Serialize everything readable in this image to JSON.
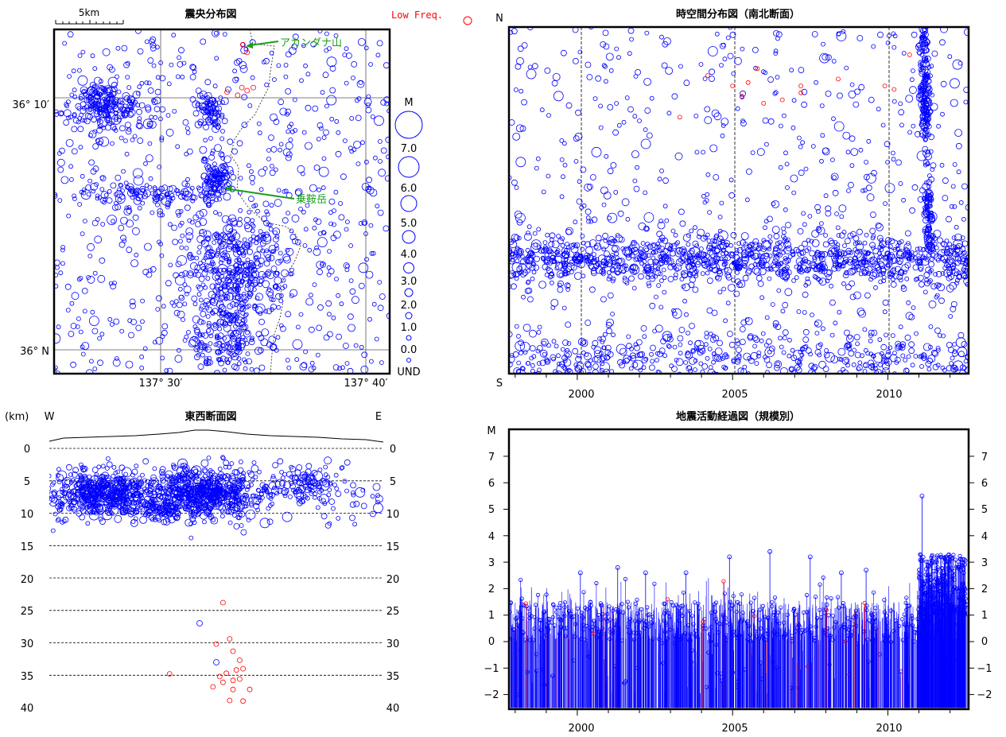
{
  "colors": {
    "normal": "#0000ff",
    "low_freq": "#ff0000",
    "label": "#1a9e1a",
    "frame": "#000000"
  },
  "legend_low_freq": "Low Freq.",
  "charts": {
    "map": {
      "title": "震央分布図",
      "scale_label": "5km",
      "lat_labels": [
        "36° 10′",
        "36° N"
      ],
      "lon_labels": [
        "137° 30′",
        "137° 40′"
      ],
      "volcano_labels": [
        "アカンダナ山",
        "乗鞍岳"
      ]
    },
    "magnitude_legend": {
      "header": "M",
      "labels": [
        "7.0",
        "6.0",
        "5.0",
        "4.0",
        "3.0",
        "2.0",
        "1.0",
        "0.0",
        "UND"
      ]
    },
    "spacetime": {
      "title": "時空間分布図（南北断面）",
      "top_label": "N",
      "bottom_label": "S",
      "years": [
        "2000",
        "2005",
        "2010"
      ]
    },
    "cross_section": {
      "title": "東西断面図",
      "unit_label": "(km)",
      "west_label": "W",
      "east_label": "E",
      "depths": [
        "0",
        "5",
        "10",
        "15",
        "20",
        "25",
        "30",
        "35",
        "40"
      ]
    },
    "activity": {
      "title": "地震活動経過図（規模別）",
      "axis_label": "M",
      "ticks": [
        "7",
        "6",
        "5",
        "4",
        "3",
        "2",
        "1",
        "0",
        "−1",
        "−2"
      ],
      "years": [
        "2000",
        "2005",
        "2010"
      ]
    }
  },
  "chart_data": [
    {
      "type": "scatter",
      "title": "震央分布図",
      "xlim": [
        137.39,
        137.71
      ],
      "ylim": [
        35.99,
        36.215
      ],
      "clusters": [
        {
          "lon": 137.438,
          "lat": 36.165,
          "spread": [
            0.02,
            0.008
          ],
          "count": 220
        },
        {
          "lon": 137.538,
          "lat": 36.162,
          "spread": [
            0.007,
            0.006
          ],
          "count": 70
        },
        {
          "lon": 137.545,
          "lat": 36.118,
          "spread": [
            0.007,
            0.007
          ],
          "count": 100
        },
        {
          "lon": 137.48,
          "lat": 36.107,
          "spread": [
            0.035,
            0.004
          ],
          "count": 120
        },
        {
          "lon": 137.565,
          "lat": 36.06,
          "spread": [
            0.025,
            0.018
          ],
          "count": 380
        },
        {
          "lon": 137.555,
          "lat": 36.015,
          "spread": [
            0.018,
            0.014
          ],
          "count": 180
        },
        {
          "lon": 137.74,
          "lat": 36.19,
          "spread": [
            0.004,
            0.003
          ],
          "count": 20
        }
      ],
      "background_count": 650,
      "low_freq_events": [
        {
          "lon": 137.57,
          "lat": 36.205
        },
        {
          "lon": 137.574,
          "lat": 36.2
        },
        {
          "lon": 137.569,
          "lat": 36.177
        },
        {
          "lon": 137.574,
          "lat": 36.175
        },
        {
          "lon": 137.555,
          "lat": 36.174
        },
        {
          "lon": 137.58,
          "lat": 36.177
        },
        {
          "lon": 137.565,
          "lat": 36.172
        }
      ]
    },
    {
      "type": "scatter",
      "title": "時空間分布図（南北断面）",
      "xlim": [
        1997.8,
        2012.6
      ],
      "ylim": [
        0,
        1
      ],
      "streaks": [
        {
          "y": 0.33,
          "spread": 0.035,
          "count": 1050
        },
        {
          "y": 0.04,
          "spread": 0.04,
          "count": 420
        }
      ],
      "swarms": [
        {
          "t": 2011.2,
          "y": 0.78,
          "spread": [
            0.08,
            0.08
          ],
          "count": 150
        },
        {
          "t": 2011.3,
          "y": 0.45,
          "spread": [
            0.07,
            0.05
          ],
          "count": 80
        },
        {
          "t": 2011.15,
          "y": 0.95,
          "spread": [
            0.07,
            0.04
          ],
          "count": 40
        }
      ],
      "background_count": 650,
      "low_freq_events": [
        {
          "t": 2003.3,
          "y": 0.74
        },
        {
          "t": 2005.0,
          "y": 0.83
        },
        {
          "t": 2005.3,
          "y": 0.8
        },
        {
          "t": 2005.5,
          "y": 0.84
        },
        {
          "t": 2006.0,
          "y": 0.78
        },
        {
          "t": 2006.6,
          "y": 0.79
        },
        {
          "t": 2007.2,
          "y": 0.83
        },
        {
          "t": 2007.2,
          "y": 0.81
        },
        {
          "t": 2008.4,
          "y": 0.85
        },
        {
          "t": 2009.9,
          "y": 0.83
        },
        {
          "t": 2010.2,
          "y": 0.82
        },
        {
          "t": 2010.7,
          "y": 0.92
        },
        {
          "t": 2004.2,
          "y": 0.86
        },
        {
          "t": 2005.8,
          "y": 0.88
        }
      ]
    },
    {
      "type": "scatter",
      "title": "東西断面図",
      "xlim": [
        0,
        1
      ],
      "ylim": [
        40,
        0
      ],
      "clusters": [
        {
          "x": 0.17,
          "depth": 7.0,
          "spread": [
            0.08,
            1.6
          ],
          "count": 520
        },
        {
          "x": 0.47,
          "depth": 7.0,
          "spread": [
            0.08,
            1.8
          ],
          "count": 600
        },
        {
          "x": 0.76,
          "depth": 5.5,
          "spread": [
            0.05,
            1.3
          ],
          "count": 90
        },
        {
          "x": 0.33,
          "depth": 9.5,
          "spread": [
            0.03,
            0.8
          ],
          "count": 60
        }
      ],
      "background_count": 160,
      "deep_events": [
        {
          "x": 0.5,
          "depth": 33,
          "kind": "normal"
        },
        {
          "x": 0.45,
          "depth": 27,
          "kind": "normal"
        },
        {
          "x": 0.52,
          "depth": 23.8,
          "kind": "low_freq"
        },
        {
          "x": 0.5,
          "depth": 30.2,
          "kind": "low_freq"
        },
        {
          "x": 0.54,
          "depth": 29.4,
          "kind": "low_freq"
        },
        {
          "x": 0.55,
          "depth": 31.3,
          "kind": "low_freq"
        },
        {
          "x": 0.57,
          "depth": 32.7,
          "kind": "low_freq"
        },
        {
          "x": 0.51,
          "depth": 35.2,
          "kind": "low_freq"
        },
        {
          "x": 0.53,
          "depth": 34.7,
          "kind": "low_freq"
        },
        {
          "x": 0.56,
          "depth": 34.2,
          "kind": "low_freq"
        },
        {
          "x": 0.58,
          "depth": 34.0,
          "kind": "low_freq"
        },
        {
          "x": 0.52,
          "depth": 36.1,
          "kind": "low_freq"
        },
        {
          "x": 0.55,
          "depth": 35.8,
          "kind": "low_freq"
        },
        {
          "x": 0.57,
          "depth": 35.6,
          "kind": "low_freq"
        },
        {
          "x": 0.49,
          "depth": 36.8,
          "kind": "low_freq"
        },
        {
          "x": 0.55,
          "depth": 37.2,
          "kind": "low_freq"
        },
        {
          "x": 0.6,
          "depth": 37.2,
          "kind": "low_freq"
        },
        {
          "x": 0.54,
          "depth": 38.9,
          "kind": "low_freq"
        },
        {
          "x": 0.58,
          "depth": 39.0,
          "kind": "low_freq"
        },
        {
          "x": 0.36,
          "depth": 34.8,
          "kind": "low_freq"
        }
      ]
    },
    {
      "type": "bar",
      "title": "地震活動経過図（規模別）",
      "xlim": [
        1997.8,
        2012.6
      ],
      "ylim": [
        -2.5,
        8
      ],
      "base": -2.5,
      "notable_events": [
        {
          "t": 2011.1,
          "m": 5.5
        },
        {
          "t": 2006.2,
          "m": 3.4
        },
        {
          "t": 2004.9,
          "m": 3.2
        },
        {
          "t": 2007.5,
          "m": 3.2
        },
        {
          "t": 2012.4,
          "m": 3.1
        },
        {
          "t": 2000.1,
          "m": 2.6
        },
        {
          "t": 2001.3,
          "m": 2.8
        },
        {
          "t": 2002.2,
          "m": 2.6
        },
        {
          "t": 2003.5,
          "m": 2.6
        },
        {
          "t": 2008.5,
          "m": 2.6
        },
        {
          "t": 2009.3,
          "m": 2.7
        }
      ],
      "typical_range": [
        0,
        1.5
      ]
    }
  ]
}
